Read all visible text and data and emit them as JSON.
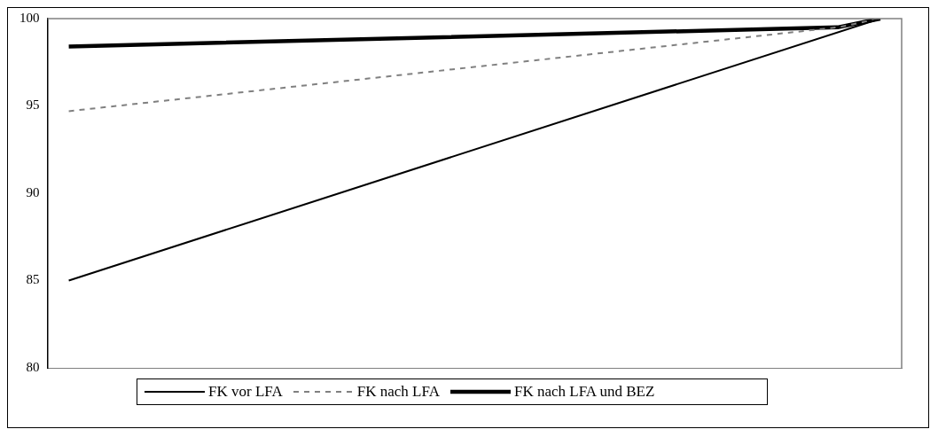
{
  "chart_data": {
    "type": "line",
    "categories": [
      null,
      null,
      null,
      null,
      null,
      null,
      null,
      null,
      null,
      null,
      null,
      null,
      null,
      null,
      null,
      null,
      null,
      null,
      null,
      null
    ],
    "series": [
      {
        "name": "FK vor LFA",
        "color": "#000000",
        "line_style": "solid",
        "values": [
          85,
          null,
          null,
          null,
          null,
          null,
          null,
          null,
          null,
          null,
          null,
          null,
          null,
          null,
          null,
          null,
          null,
          null,
          null,
          100
        ]
      },
      {
        "name": "FK nach LFA",
        "color": "#808080",
        "line_style": "dashed",
        "values": [
          94.7,
          null,
          null,
          null,
          null,
          null,
          null,
          null,
          null,
          null,
          null,
          null,
          null,
          null,
          null,
          null,
          null,
          null,
          99.5,
          100
        ]
      },
      {
        "name": "FK nach LFA und BEZ",
        "color": "#000000",
        "line_style": "solid",
        "values": [
          98.4,
          null,
          null,
          null,
          null,
          null,
          null,
          null,
          null,
          null,
          null,
          null,
          null,
          null,
          null,
          null,
          null,
          null,
          99.5,
          100
        ]
      }
    ],
    "ylim": [
      80,
      100
    ],
    "yticks": [
      80,
      85,
      90,
      95,
      100
    ],
    "grid": false,
    "legend": "bottom",
    "marker": "none",
    "tick_labels": "y"
  }
}
